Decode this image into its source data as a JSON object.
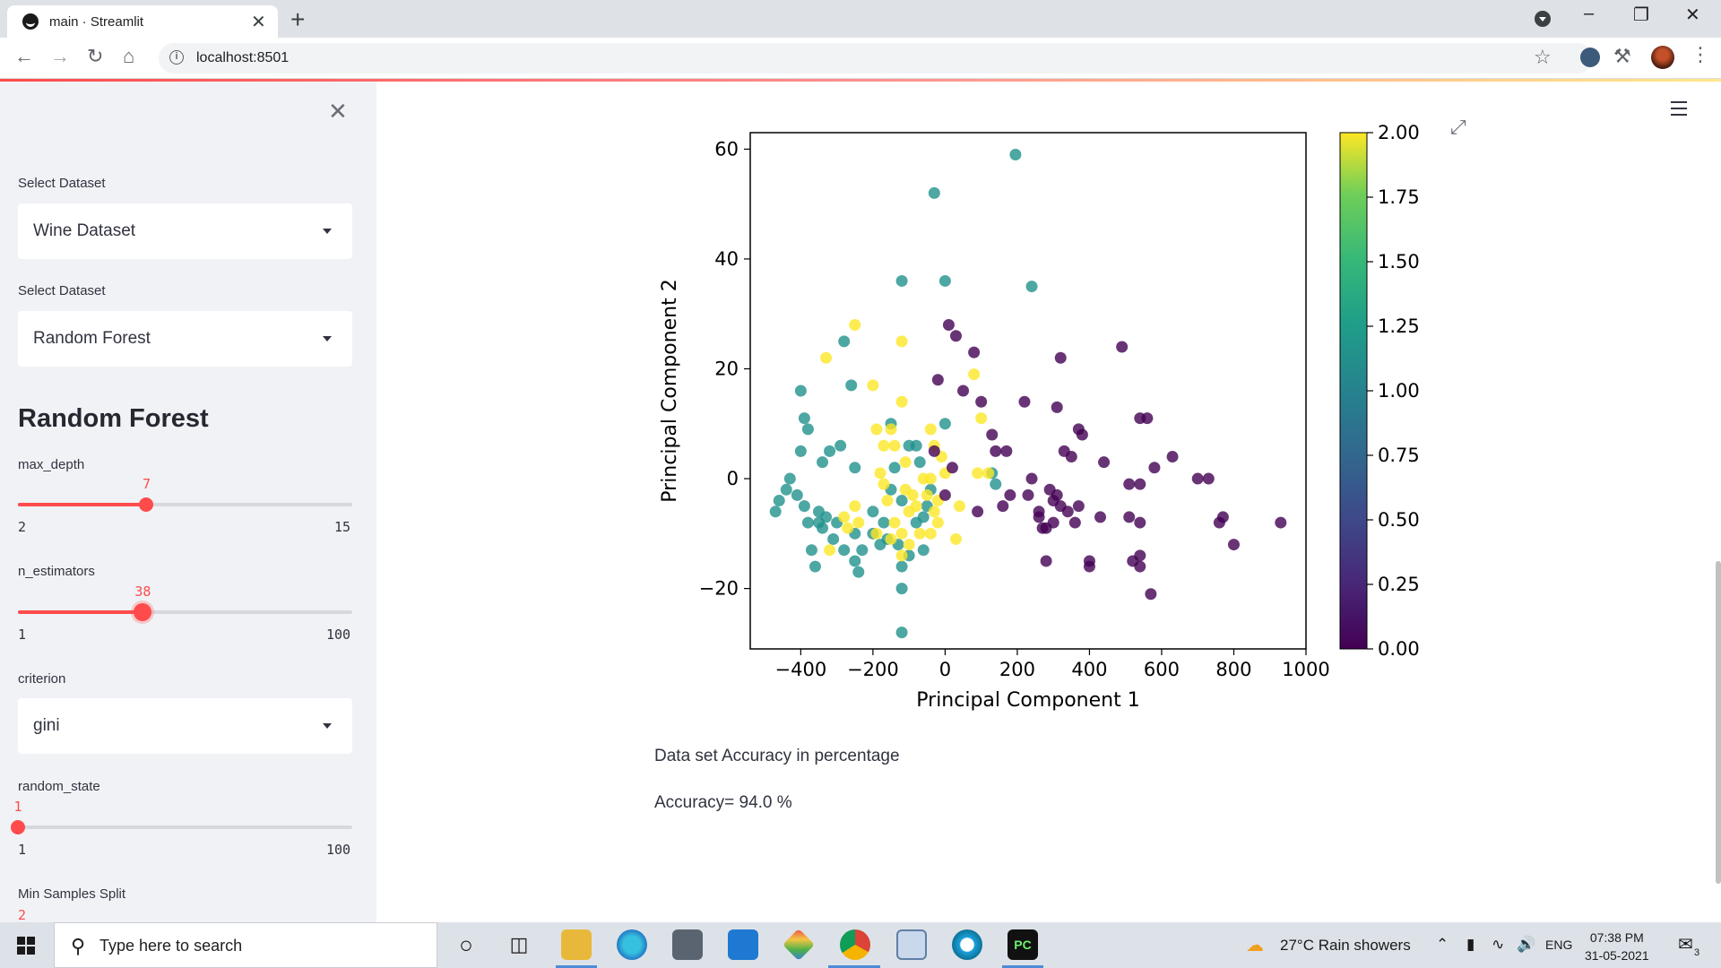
{
  "browser": {
    "tab_title": "main · Streamlit",
    "tab_close": "✕",
    "new_tab": "+",
    "url": "localhost:8501"
  },
  "sidebar": {
    "close_glyph": "✕",
    "dataset_label": "Select Dataset",
    "dataset_value": "Wine Dataset",
    "classifier_label": "Select Dataset",
    "classifier_value": "Random Forest",
    "heading": "Random Forest",
    "max_depth": {
      "label": "max_depth",
      "value": 7,
      "min": 2,
      "max": 15
    },
    "n_estimators": {
      "label": "n_estimators",
      "value": 38,
      "min": 1,
      "max": 100
    },
    "criterion_label": "criterion",
    "criterion_value": "gini",
    "random_state": {
      "label": "random_state",
      "value": 1,
      "min": 1,
      "max": 100
    },
    "min_samples_split": {
      "label": "Min Samples Split",
      "value": 2
    }
  },
  "main": {
    "accuracy_label": "Data set Accuracy in percentage",
    "accuracy_value": "Accuracy= 94.0 %"
  },
  "chart_data": {
    "type": "scatter",
    "xlabel": "Principal Component 1",
    "ylabel": "Principal Component 2",
    "xlim": [
      -540,
      1000
    ],
    "ylim": [
      -31,
      63
    ],
    "xticks": [
      -400,
      -200,
      0,
      200,
      400,
      600,
      800,
      1000
    ],
    "yticks": [
      -20,
      0,
      20,
      40,
      60
    ],
    "colormap": "viridis",
    "colorbar": {
      "min": 0.0,
      "max": 2.0,
      "ticks": [
        "0.00",
        "0.25",
        "0.50",
        "0.75",
        "1.00",
        "1.25",
        "1.50",
        "1.75",
        "2.00"
      ]
    },
    "class_colors": {
      "0": "#440154",
      "1": "#21918c",
      "2": "#fde725"
    },
    "points": [
      [
        195,
        59,
        1
      ],
      [
        -30,
        52,
        1
      ],
      [
        -120,
        36,
        1
      ],
      [
        0,
        36,
        1
      ],
      [
        240,
        35,
        1
      ],
      [
        -280,
        25,
        1
      ],
      [
        -260,
        17,
        1
      ],
      [
        -400,
        16,
        1
      ],
      [
        -390,
        11,
        1
      ],
      [
        -380,
        9,
        1
      ],
      [
        -150,
        10,
        1
      ],
      [
        0,
        10,
        1
      ],
      [
        -400,
        5,
        1
      ],
      [
        -320,
        5,
        1
      ],
      [
        -340,
        3,
        1
      ],
      [
        -290,
        6,
        1
      ],
      [
        -100,
        6,
        1
      ],
      [
        -80,
        6,
        1
      ],
      [
        -70,
        3,
        1
      ],
      [
        -140,
        2,
        1
      ],
      [
        -250,
        2,
        1
      ],
      [
        -430,
        0,
        1
      ],
      [
        -440,
        -2,
        1
      ],
      [
        -410,
        -3,
        1
      ],
      [
        -460,
        -4,
        1
      ],
      [
        -470,
        -6,
        1
      ],
      [
        -390,
        -5,
        1
      ],
      [
        -350,
        -6,
        1
      ],
      [
        -330,
        -7,
        1
      ],
      [
        -380,
        -8,
        1
      ],
      [
        -340,
        -9,
        1
      ],
      [
        -300,
        -8,
        1
      ],
      [
        -310,
        -11,
        1
      ],
      [
        -250,
        -10,
        1
      ],
      [
        -230,
        -13,
        1
      ],
      [
        -280,
        -13,
        1
      ],
      [
        -200,
        -10,
        1
      ],
      [
        -180,
        -12,
        1
      ],
      [
        -160,
        -11,
        1
      ],
      [
        -130,
        -12,
        1
      ],
      [
        -100,
        -14,
        1
      ],
      [
        -60,
        -13,
        1
      ],
      [
        -120,
        -16,
        1
      ],
      [
        -250,
        -15,
        1
      ],
      [
        -240,
        -17,
        1
      ],
      [
        -370,
        -13,
        1
      ],
      [
        -360,
        -16,
        1
      ],
      [
        -120,
        -20,
        1
      ],
      [
        -120,
        -28,
        1
      ],
      [
        -40,
        -2,
        1
      ],
      [
        -80,
        -8,
        1
      ],
      [
        -60,
        -7,
        1
      ],
      [
        -150,
        -2,
        1
      ],
      [
        -120,
        -4,
        1
      ],
      [
        -200,
        -6,
        1
      ],
      [
        -170,
        -8,
        1
      ],
      [
        140,
        -1,
        1
      ],
      [
        130,
        1,
        1
      ],
      [
        -50,
        -5,
        1
      ],
      [
        -350,
        -8,
        1
      ],
      [
        -250,
        28,
        2
      ],
      [
        -330,
        22,
        2
      ],
      [
        -120,
        25,
        2
      ],
      [
        -200,
        17,
        2
      ],
      [
        -120,
        14,
        2
      ],
      [
        -190,
        9,
        2
      ],
      [
        -150,
        9,
        2
      ],
      [
        -170,
        6,
        2
      ],
      [
        -140,
        6,
        2
      ],
      [
        -40,
        9,
        2
      ],
      [
        -30,
        6,
        2
      ],
      [
        -110,
        3,
        2
      ],
      [
        -170,
        -1,
        2
      ],
      [
        -180,
        1,
        2
      ],
      [
        -60,
        0,
        2
      ],
      [
        -50,
        -3,
        2
      ],
      [
        -90,
        -3,
        2
      ],
      [
        -80,
        -5,
        2
      ],
      [
        -20,
        -4,
        2
      ],
      [
        -250,
        -5,
        2
      ],
      [
        -240,
        -8,
        2
      ],
      [
        -280,
        -7,
        2
      ],
      [
        -140,
        -8,
        2
      ],
      [
        -150,
        -11,
        2
      ],
      [
        -120,
        -10,
        2
      ],
      [
        -70,
        -10,
        2
      ],
      [
        -40,
        -10,
        2
      ],
      [
        -30,
        -6,
        2
      ],
      [
        30,
        -11,
        2
      ],
      [
        -110,
        -2,
        2
      ],
      [
        0,
        1,
        2
      ],
      [
        -20,
        -8,
        2
      ],
      [
        80,
        19,
        2
      ],
      [
        100,
        11,
        2
      ],
      [
        120,
        1,
        2
      ],
      [
        -100,
        -6,
        2
      ],
      [
        -160,
        -4,
        2
      ],
      [
        -190,
        -10,
        2
      ],
      [
        -320,
        -13,
        2
      ],
      [
        -270,
        -9,
        2
      ],
      [
        -100,
        -12,
        2
      ],
      [
        40,
        -5,
        2
      ],
      [
        -10,
        4,
        2
      ],
      [
        -40,
        0,
        2
      ],
      [
        -120,
        -14,
        2
      ],
      [
        90,
        1,
        2
      ],
      [
        10,
        28,
        0
      ],
      [
        30,
        26,
        0
      ],
      [
        80,
        23,
        0
      ],
      [
        320,
        22,
        0
      ],
      [
        490,
        24,
        0
      ],
      [
        -20,
        18,
        0
      ],
      [
        50,
        16,
        0
      ],
      [
        100,
        14,
        0
      ],
      [
        220,
        14,
        0
      ],
      [
        310,
        13,
        0
      ],
      [
        560,
        11,
        0
      ],
      [
        540,
        11,
        0
      ],
      [
        370,
        9,
        0
      ],
      [
        380,
        8,
        0
      ],
      [
        130,
        8,
        0
      ],
      [
        140,
        5,
        0
      ],
      [
        170,
        5,
        0
      ],
      [
        330,
        5,
        0
      ],
      [
        350,
        4,
        0
      ],
      [
        440,
        3,
        0
      ],
      [
        580,
        2,
        0
      ],
      [
        630,
        4,
        0
      ],
      [
        -30,
        5,
        0
      ],
      [
        20,
        2,
        0
      ],
      [
        0,
        -3,
        0
      ],
      [
        240,
        0,
        0
      ],
      [
        290,
        -2,
        0
      ],
      [
        310,
        -3,
        0
      ],
      [
        320,
        -5,
        0
      ],
      [
        370,
        -5,
        0
      ],
      [
        510,
        -1,
        0
      ],
      [
        540,
        -1,
        0
      ],
      [
        700,
        0,
        0
      ],
      [
        730,
        0,
        0
      ],
      [
        90,
        -6,
        0
      ],
      [
        160,
        -5,
        0
      ],
      [
        260,
        -6,
        0
      ],
      [
        300,
        -8,
        0
      ],
      [
        280,
        -9,
        0
      ],
      [
        340,
        -6,
        0
      ],
      [
        360,
        -8,
        0
      ],
      [
        430,
        -7,
        0
      ],
      [
        510,
        -7,
        0
      ],
      [
        540,
        -8,
        0
      ],
      [
        760,
        -8,
        0
      ],
      [
        770,
        -7,
        0
      ],
      [
        930,
        -8,
        0
      ],
      [
        270,
        -9,
        0
      ],
      [
        280,
        -15,
        0
      ],
      [
        400,
        -15,
        0
      ],
      [
        400,
        -16,
        0
      ],
      [
        520,
        -15,
        0
      ],
      [
        540,
        -16,
        0
      ],
      [
        540,
        -14,
        0
      ],
      [
        800,
        -12,
        0
      ],
      [
        570,
        -21,
        0
      ],
      [
        260,
        -7,
        0
      ],
      [
        230,
        -3,
        0
      ],
      [
        300,
        -4,
        0
      ],
      [
        180,
        -3,
        0
      ]
    ]
  },
  "taskbar": {
    "search_placeholder": "Type here to search",
    "weather": "27°C  Rain showers",
    "lang": "ENG",
    "time": "07:38 PM",
    "date": "31-05-2021",
    "notification_count": "3"
  }
}
